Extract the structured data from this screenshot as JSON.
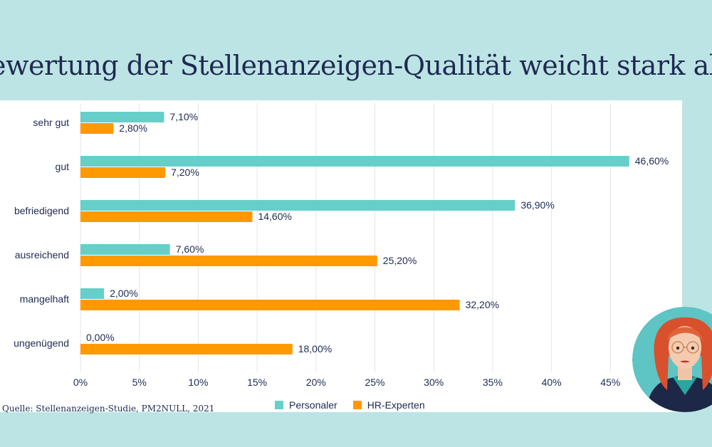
{
  "title": "ewertung der Stellenanzeigen-Qualität weicht stark ab",
  "source": "Quelle: Stellenanzeigen-Studie, PM2NULL, 2021",
  "colors": {
    "background": "#bde4e4",
    "personaler": "#66cfc9",
    "hr_experten": "#ff9900",
    "text": "#1e2a52",
    "grid": "#e3e4ef"
  },
  "legend": [
    {
      "label": "Personaler",
      "color": "#66cfc9"
    },
    {
      "label": "HR-Experten",
      "color": "#ff9900"
    }
  ],
  "chart_data": {
    "type": "bar",
    "orientation": "horizontal",
    "categories": [
      "sehr gut",
      "gut",
      "befriedigend",
      "ausreichend",
      "mangelhaft",
      "ungenügend"
    ],
    "series": [
      {
        "name": "Personaler",
        "values": [
          7.1,
          46.6,
          36.9,
          7.6,
          2.0,
          0.0
        ],
        "labels": [
          "7,10%",
          "46,60%",
          "36,90%",
          "7,60%",
          "2,00%",
          "0,00%"
        ]
      },
      {
        "name": "HR-Experten",
        "values": [
          2.8,
          7.2,
          14.6,
          25.2,
          32.2,
          18.0
        ],
        "labels": [
          "2,80%",
          "7,20%",
          "14,60%",
          "25,20%",
          "32,20%",
          "18,00%"
        ]
      }
    ],
    "x_ticks": [
      "0%",
      "5%",
      "10%",
      "15%",
      "20%",
      "25%",
      "30%",
      "35%",
      "40%",
      "45%"
    ],
    "xlim": [
      0,
      50
    ],
    "grid": true,
    "legend_position": "bottom"
  },
  "avatar_icon": "woman-with-glasses-avatar"
}
